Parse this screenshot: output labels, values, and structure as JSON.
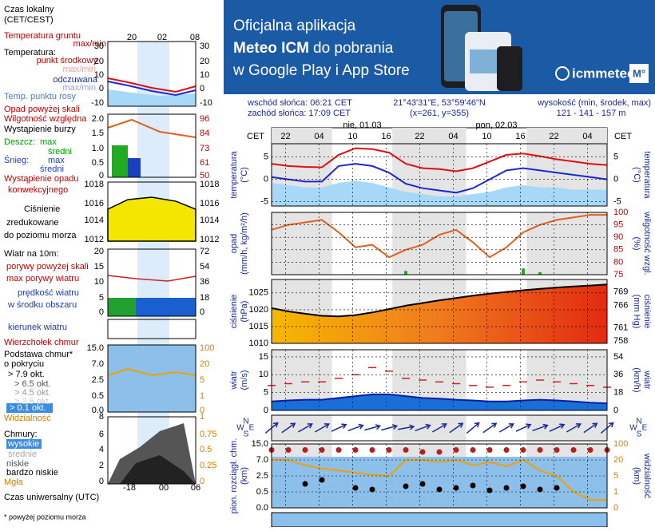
{
  "banner": {
    "line1": "Oficjalna aplikacja",
    "line2_bold": "Meteo ICM",
    "line2_rest": "do pobrania",
    "line3": "w Google Play i App Store",
    "logo": "icmmeteo",
    "badge": "M°"
  },
  "info": {
    "sunrise": "wschód słońca: 06:21 CET",
    "sunset": "zachód słońca: 17:09 CET",
    "coords": "21°43'31\"E, 53°59'46\"N",
    "grid": "(x=261, y=355)",
    "elev_label": "wysokość (min, środek, max)",
    "elev": "121 - 141 - 157 m"
  },
  "legend": {
    "labels": [
      "Czas lokalny",
      "(CET/CEST)",
      "Temperatura gruntu",
      "max/min",
      "Temperatura:",
      "punkt środkowy",
      "max/min",
      "odczuwana",
      "max/min",
      "Temp. punktu rosy",
      "Opad powyżej skali",
      "Wilgotność względna",
      "Wystąpienie burzy",
      "Deszcz:",
      "max",
      "średni",
      "Śnieg:",
      "max",
      "średni",
      "Wystąpienie opadu",
      "konwekcyjnego",
      "Ciśnienie",
      "zredukowane",
      "do poziomu morza",
      "Wiatr na 10m:",
      "porywy powyżej skali",
      "max porywy wiatru",
      "prędkość wiatru",
      "w środku obszaru",
      "kierunek wiatru",
      "Wierzchołek chmur",
      "Podstawa chmur*",
      "o pokryciu",
      "> 7.9 okt.",
      "> 6.5 okt.",
      "> 4.5 okt.",
      "> 2.5 okt.",
      "> 0.1 okt.",
      "Widzialność",
      "Chmury:",
      "wysokie",
      "średnie",
      "niskie",
      "bardzo niskie",
      "Mgła",
      "Czas uniwersalny (UTC)",
      "* powyżej poziomu morza"
    ],
    "ticks": {
      "local": [
        "20",
        "02",
        "08"
      ],
      "temp_l": [
        "30",
        "20",
        "10",
        "0",
        "-10"
      ],
      "temp_r": [
        "30",
        "20",
        "10",
        "0",
        "-10"
      ],
      "prec_l": [
        "2.0",
        "1.5",
        "1.0",
        "0.5",
        "0"
      ],
      "prec_r": [
        "96",
        "84",
        "73",
        "61",
        "50"
      ],
      "pres_l": [
        "1018",
        "1016",
        "1014",
        "1012"
      ],
      "pres_r": [
        "1018",
        "1016",
        "1014",
        "1012"
      ],
      "wind_l": [
        "20",
        "15",
        "10",
        "5",
        "0"
      ],
      "wind_r": [
        "72",
        "54",
        "36",
        "18",
        "0"
      ],
      "cloud_l": [
        "15.0",
        "7.0",
        "2.5",
        "0.5",
        "0.0"
      ],
      "cloud_r": [
        "100",
        "20",
        "5",
        "1",
        "0"
      ],
      "vis_l": [
        "8"
      ],
      "vis_r": [
        "1"
      ],
      "cover_l": [
        "6",
        "4",
        "2",
        "0"
      ],
      "cover_r": [
        "0.75",
        "0.5",
        "0.25",
        "0"
      ],
      "utc": [
        "-18",
        "00",
        "06"
      ]
    }
  },
  "chart_data": [
    {
      "type": "line",
      "xlabel": "CET",
      "dates": [
        "nie, 01.03",
        "pon, 02.03"
      ],
      "x": [
        0,
        3,
        6,
        9,
        12,
        15,
        18,
        21,
        24,
        27,
        30,
        33,
        36,
        39,
        42,
        45,
        48,
        51,
        54,
        57,
        60
      ],
      "xlim": [
        0,
        60
      ],
      "xticks": [
        {
          "value": 2.5,
          "label": "22"
        },
        {
          "value": 8.5,
          "label": "04"
        },
        {
          "value": 14.5,
          "label": "10"
        },
        {
          "value": 20.5,
          "label": "16"
        },
        {
          "value": 26.5,
          "label": "22"
        },
        {
          "value": 32.5,
          "label": "04"
        },
        {
          "value": 38.5,
          "label": "10"
        },
        {
          "value": 44.5,
          "label": "16"
        },
        {
          "value": 50.5,
          "label": "22"
        },
        {
          "value": 56.5,
          "label": "04"
        }
      ],
      "ylabel": [
        "temperatura",
        "(°C)"
      ],
      "y2label": [
        "(°C)",
        "temperatura"
      ],
      "ylim": [
        -6,
        8
      ],
      "yticks": [
        5,
        0,
        -5
      ],
      "grid": true,
      "series": [
        {
          "style": "area",
          "color": "#a8d8f8",
          "values": [
            -1,
            -1.5,
            -2,
            -2,
            -1,
            -0.5,
            -1,
            -2,
            -3,
            -3.5,
            -4,
            -4,
            -3.5,
            -3,
            -2,
            -1.5,
            -2,
            -2,
            -2.5,
            -2.5,
            -2.5
          ]
        },
        {
          "style": "line",
          "color": "#1a2ad0",
          "values": [
            0.5,
            0,
            -0.5,
            -0.5,
            3,
            3.5,
            3,
            1.5,
            -1,
            -2,
            -2.5,
            -3,
            -2,
            0,
            2,
            2.5,
            2,
            1.5,
            1,
            0.5,
            0
          ]
        },
        {
          "style": "line",
          "color": "#e01010",
          "values": [
            3.5,
            3,
            2.8,
            2.7,
            5.5,
            7,
            6.8,
            6,
            3.5,
            2.5,
            2.3,
            1.8,
            2.5,
            4,
            5.5,
            5.8,
            5.2,
            4.5,
            4,
            3.5,
            3.2
          ]
        }
      ]
    },
    {
      "type": "bar",
      "x": [
        0,
        3,
        6,
        9,
        12,
        15,
        18,
        21,
        24,
        27,
        30,
        33,
        36,
        39,
        42,
        45,
        48,
        51,
        54,
        57,
        60
      ],
      "ylabel": [
        "opad",
        "(mm/h, kg/m²/h)"
      ],
      "y2label": [
        "(%)",
        "wilgotność wzgl."
      ],
      "ylim": [
        0,
        5
      ],
      "y2lim": [
        75,
        100
      ],
      "y2ticks": [
        100,
        95,
        90,
        85,
        80,
        75
      ],
      "grid": true,
      "series": [
        {
          "style": "bar",
          "color": "#22aa22",
          "values": [
            0,
            0,
            0,
            0,
            0,
            0,
            0,
            0,
            0.3,
            0,
            0,
            0,
            0,
            0,
            0,
            0.5,
            0.2,
            0,
            0,
            0,
            0
          ]
        },
        {
          "style": "line",
          "color": "#e06020",
          "axis": "y2",
          "values": [
            93,
            95,
            96,
            97,
            92,
            86,
            87,
            82,
            85,
            87,
            91,
            93,
            88,
            82,
            86,
            92,
            95,
            97,
            98,
            99,
            99
          ]
        }
      ]
    },
    {
      "type": "area",
      "x": [
        0,
        3,
        6,
        9,
        12,
        15,
        18,
        21,
        24,
        27,
        30,
        33,
        36,
        39,
        42,
        45,
        48,
        51,
        54,
        57,
        60
      ],
      "ylabel": [
        "ciśnienie",
        "(hPa)"
      ],
      "y2label": [
        "(mm Hg)",
        "ciśnienie"
      ],
      "ylim": [
        1010,
        1029
      ],
      "yticks": [
        1025,
        1020,
        1015,
        1010
      ],
      "y2lim": [
        757.5,
        771.8
      ],
      "y2ticks": [
        769,
        766,
        761,
        758
      ],
      "grid": true,
      "series": [
        {
          "style": "area",
          "color": "#000000",
          "fill_colors": [
            "#f5b800",
            "#f07a1e",
            "#e22a10"
          ],
          "values": [
            1020.5,
            1019.5,
            1018.8,
            1018.2,
            1018,
            1018.4,
            1019.2,
            1020.2,
            1021.2,
            1022,
            1022.8,
            1023.5,
            1024.2,
            1024.8,
            1025.3,
            1025.8,
            1026.2,
            1026.6,
            1026.9,
            1027.2,
            1027.5
          ]
        }
      ]
    },
    {
      "type": "line",
      "x": [
        0,
        3,
        6,
        9,
        12,
        15,
        18,
        21,
        24,
        27,
        30,
        33,
        36,
        39,
        42,
        45,
        48,
        51,
        54,
        57,
        60
      ],
      "ylabel": [
        "wiatr",
        "(m/s)"
      ],
      "y2label": [
        "(km/h)",
        "wiatr"
      ],
      "ylim": [
        0,
        17
      ],
      "yticks": [
        15,
        10,
        5,
        0
      ],
      "y2lim": [
        0,
        61.2
      ],
      "y2ticks": [
        54,
        36,
        18,
        0
      ],
      "grid": true,
      "series": [
        {
          "style": "area",
          "color": "#0a1ea0",
          "fill": "#1a6fd6",
          "values": [
            2.5,
            2.8,
            3,
            3,
            3.5,
            4,
            4.5,
            4.5,
            4,
            3.5,
            3.3,
            3,
            2.8,
            2.5,
            2.5,
            2.8,
            3,
            2.8,
            2.5,
            2.2,
            2
          ]
        },
        {
          "style": "dashes",
          "color": "#d02020",
          "values": [
            7,
            7.5,
            8,
            8,
            9,
            10,
            12,
            11,
            9,
            8.5,
            8,
            7.5,
            7,
            6.5,
            7,
            8,
            8.5,
            8,
            7.5,
            7,
            6.5
          ]
        }
      ]
    },
    {
      "type": "arrows",
      "x": [
        0,
        3,
        6,
        9,
        12,
        15,
        18,
        21,
        24,
        27,
        30,
        33,
        36,
        39,
        42,
        45,
        48,
        51,
        54,
        57,
        60
      ],
      "compass": [
        "N",
        "W",
        "E",
        "S"
      ],
      "series": [
        {
          "style": "arrows",
          "color": "#1a2a9a",
          "values": [
            230,
            235,
            240,
            240,
            245,
            250,
            255,
            255,
            260,
            250,
            240,
            235,
            230,
            235,
            240,
            245,
            250,
            245,
            240,
            235,
            230
          ]
        }
      ]
    },
    {
      "type": "scatter",
      "x": [
        0,
        3,
        6,
        9,
        12,
        15,
        18,
        21,
        24,
        27,
        30,
        33,
        36,
        39,
        42,
        45,
        48,
        51,
        54,
        57,
        60
      ],
      "ylabel": [
        "pion. rozciągł. chm.",
        "(km)"
      ],
      "y2label": [
        "(km)",
        "widzialność"
      ],
      "ylim": [
        0,
        15
      ],
      "yscale": "piecewise",
      "yticks": [
        {
          "value": 15,
          "label": "15.0"
        },
        {
          "value": 7,
          "label": "7.0"
        },
        2.5,
        0.5,
        {
          "value": 0,
          "label": "0.0"
        }
      ],
      "y2lim": [
        0,
        100
      ],
      "y2scale": "piecewise",
      "y2ticks": [
        100,
        20,
        5,
        1,
        0
      ],
      "grid": true,
      "series": [
        {
          "style": "line",
          "color": "#f0a000",
          "axis": "y2",
          "values": [
            20,
            20,
            15,
            12,
            10,
            8,
            6,
            5,
            20,
            20,
            18,
            20,
            15,
            18,
            14,
            20,
            10,
            5,
            1,
            0.5,
            0.5
          ]
        },
        {
          "style": "dots",
          "color": "#b22222",
          "values": [
            12,
            12,
            12,
            12,
            12,
            12,
            12,
            12,
            12,
            11,
            11,
            12,
            12,
            12,
            12,
            12,
            12,
            12,
            12,
            12,
            12
          ]
        },
        {
          "style": "dots",
          "color": "#000000",
          "values": [
            null,
            null,
            1.5,
            2,
            null,
            1,
            0.8,
            null,
            1.2,
            1.5,
            0.8,
            1,
            1.3,
            0.7,
            1,
            1.2,
            0.8,
            1,
            null,
            null,
            null
          ]
        }
      ]
    }
  ]
}
